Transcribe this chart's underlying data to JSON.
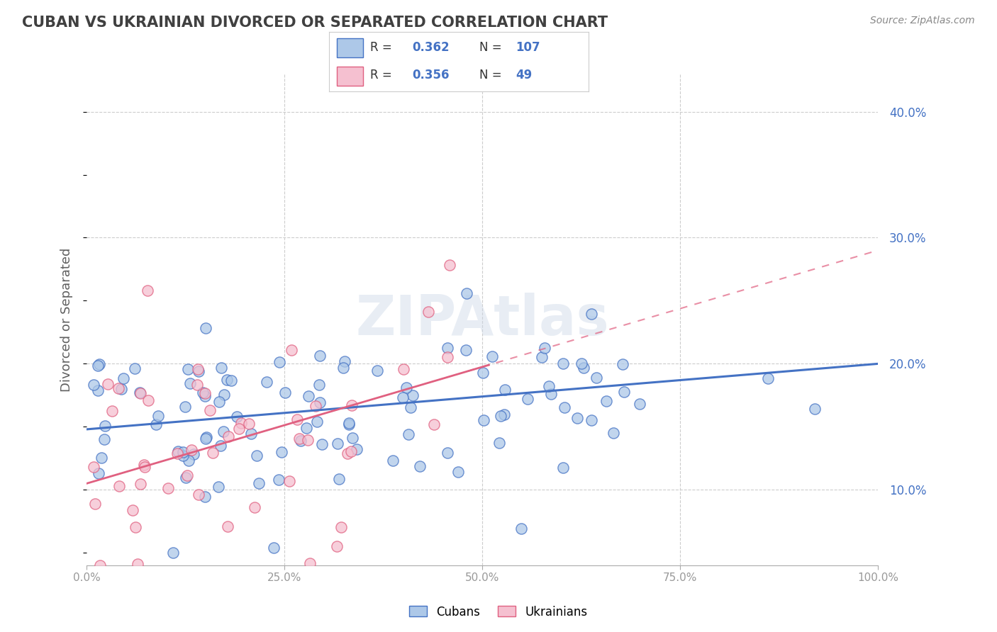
{
  "title": "CUBAN VS UKRAINIAN DIVORCED OR SEPARATED CORRELATION CHART",
  "source": "Source: ZipAtlas.com",
  "ylabel": "Divorced or Separated",
  "watermark": "ZIPAtlas",
  "blue_R": 0.362,
  "blue_N": 107,
  "pink_R": 0.356,
  "pink_N": 49,
  "blue_color": "#adc8e8",
  "pink_color": "#f5c0d0",
  "blue_line_color": "#4472C4",
  "pink_line_color": "#E06080",
  "blue_dot_edge": "#4472C4",
  "pink_dot_edge": "#E06080",
  "xlim": [
    0,
    1.0
  ],
  "ylim": [
    0.04,
    0.43
  ],
  "xticks": [
    0.0,
    0.25,
    0.5,
    0.75,
    1.0
  ],
  "xtick_labels": [
    "0.0%",
    "25.0%",
    "50.0%",
    "75.0%",
    "100.0%"
  ],
  "yticks": [
    0.1,
    0.2,
    0.3,
    0.4
  ],
  "ytick_labels": [
    "10.0%",
    "20.0%",
    "30.0%",
    "40.0%"
  ],
  "blue_intercept": 0.148,
  "blue_slope": 0.052,
  "pink_intercept": 0.105,
  "pink_slope": 0.185,
  "background_color": "#ffffff",
  "grid_color": "#cccccc",
  "title_color": "#404040",
  "axis_label_color": "#606060",
  "tick_color": "#999999",
  "legend_blue": "#4472C4"
}
